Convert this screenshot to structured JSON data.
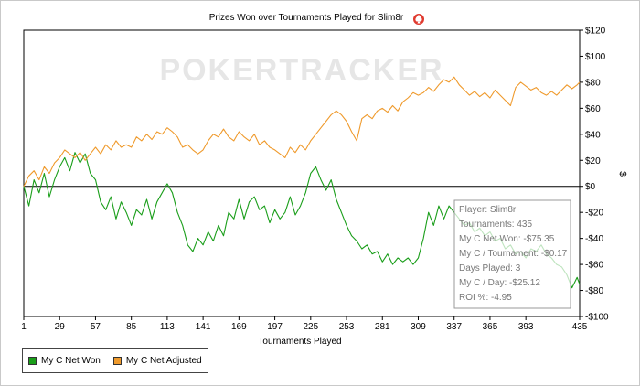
{
  "chart_data": {
    "type": "line",
    "title": "Prizes Won over Tournaments Played for Slim8r",
    "watermark": "POKERTRACKER",
    "xlabel": "Tournaments Played",
    "ylabel": "$",
    "xlim": [
      1,
      435
    ],
    "ylim": [
      -100,
      120
    ],
    "x_ticks": [
      1,
      29,
      57,
      85,
      113,
      141,
      169,
      197,
      225,
      253,
      281,
      309,
      337,
      365,
      393,
      435
    ],
    "y_ticks": [
      120,
      100,
      80,
      60,
      40,
      20,
      0,
      -20,
      -40,
      -60,
      -80,
      -100
    ],
    "y_tick_labels": [
      "$120",
      "$100",
      "$80",
      "$60",
      "$40",
      "$20",
      "$0",
      "-$20",
      "-$40",
      "-$60",
      "-$80",
      "-$100"
    ],
    "grid": false,
    "legend_position": "bottom-left",
    "series": [
      {
        "name": "My C Net Won",
        "color": "#1a9e1a",
        "points": [
          [
            1,
            0
          ],
          [
            5,
            -15
          ],
          [
            9,
            5
          ],
          [
            13,
            -5
          ],
          [
            17,
            10
          ],
          [
            21,
            -8
          ],
          [
            25,
            5
          ],
          [
            29,
            15
          ],
          [
            33,
            22
          ],
          [
            37,
            12
          ],
          [
            41,
            26
          ],
          [
            45,
            18
          ],
          [
            49,
            25
          ],
          [
            53,
            10
          ],
          [
            57,
            5
          ],
          [
            61,
            -12
          ],
          [
            65,
            -18
          ],
          [
            69,
            -8
          ],
          [
            73,
            -25
          ],
          [
            77,
            -12
          ],
          [
            81,
            -20
          ],
          [
            85,
            -30
          ],
          [
            89,
            -18
          ],
          [
            93,
            -22
          ],
          [
            97,
            -10
          ],
          [
            101,
            -25
          ],
          [
            105,
            -12
          ],
          [
            109,
            -5
          ],
          [
            113,
            2
          ],
          [
            117,
            -5
          ],
          [
            121,
            -20
          ],
          [
            125,
            -30
          ],
          [
            129,
            -45
          ],
          [
            133,
            -50
          ],
          [
            137,
            -40
          ],
          [
            141,
            -45
          ],
          [
            145,
            -35
          ],
          [
            149,
            -42
          ],
          [
            153,
            -30
          ],
          [
            157,
            -38
          ],
          [
            161,
            -20
          ],
          [
            165,
            -25
          ],
          [
            169,
            -10
          ],
          [
            173,
            -25
          ],
          [
            177,
            -12
          ],
          [
            181,
            -8
          ],
          [
            185,
            -18
          ],
          [
            189,
            -15
          ],
          [
            193,
            -28
          ],
          [
            197,
            -18
          ],
          [
            201,
            -25
          ],
          [
            205,
            -20
          ],
          [
            209,
            -8
          ],
          [
            213,
            -22
          ],
          [
            217,
            -15
          ],
          [
            221,
            -5
          ],
          [
            225,
            10
          ],
          [
            229,
            15
          ],
          [
            233,
            5
          ],
          [
            237,
            -3
          ],
          [
            241,
            5
          ],
          [
            245,
            -10
          ],
          [
            249,
            -20
          ],
          [
            253,
            -30
          ],
          [
            257,
            -38
          ],
          [
            261,
            -42
          ],
          [
            265,
            -48
          ],
          [
            269,
            -45
          ],
          [
            273,
            -52
          ],
          [
            277,
            -50
          ],
          [
            281,
            -58
          ],
          [
            285,
            -52
          ],
          [
            289,
            -60
          ],
          [
            293,
            -55
          ],
          [
            297,
            -58
          ],
          [
            301,
            -55
          ],
          [
            305,
            -60
          ],
          [
            309,
            -55
          ],
          [
            313,
            -40
          ],
          [
            317,
            -20
          ],
          [
            321,
            -30
          ],
          [
            325,
            -15
          ],
          [
            329,
            -25
          ],
          [
            333,
            -15
          ],
          [
            337,
            -20
          ],
          [
            341,
            -25
          ],
          [
            345,
            -30
          ],
          [
            349,
            -28
          ],
          [
            353,
            -35
          ],
          [
            357,
            -32
          ],
          [
            361,
            -38
          ],
          [
            365,
            -35
          ],
          [
            369,
            -42
          ],
          [
            373,
            -40
          ],
          [
            377,
            -48
          ],
          [
            381,
            -45
          ],
          [
            385,
            -52
          ],
          [
            389,
            -50
          ],
          [
            393,
            -55
          ],
          [
            397,
            -48
          ],
          [
            401,
            -50
          ],
          [
            405,
            -45
          ],
          [
            409,
            -52
          ],
          [
            413,
            -55
          ],
          [
            417,
            -60
          ],
          [
            421,
            -62
          ],
          [
            425,
            -68
          ],
          [
            429,
            -78
          ],
          [
            433,
            -70
          ],
          [
            435,
            -75.35
          ]
        ]
      },
      {
        "name": "My C Net Adjusted",
        "color": "#ef9a2c",
        "points": [
          [
            1,
            0
          ],
          [
            5,
            8
          ],
          [
            9,
            12
          ],
          [
            13,
            5
          ],
          [
            17,
            15
          ],
          [
            21,
            10
          ],
          [
            25,
            18
          ],
          [
            29,
            22
          ],
          [
            33,
            28
          ],
          [
            37,
            25
          ],
          [
            41,
            22
          ],
          [
            45,
            26
          ],
          [
            49,
            20
          ],
          [
            53,
            25
          ],
          [
            57,
            30
          ],
          [
            61,
            25
          ],
          [
            65,
            32
          ],
          [
            69,
            28
          ],
          [
            73,
            35
          ],
          [
            77,
            30
          ],
          [
            81,
            32
          ],
          [
            85,
            30
          ],
          [
            89,
            38
          ],
          [
            93,
            35
          ],
          [
            97,
            40
          ],
          [
            101,
            36
          ],
          [
            105,
            42
          ],
          [
            109,
            40
          ],
          [
            113,
            45
          ],
          [
            117,
            42
          ],
          [
            121,
            38
          ],
          [
            125,
            30
          ],
          [
            129,
            32
          ],
          [
            133,
            28
          ],
          [
            137,
            25
          ],
          [
            141,
            28
          ],
          [
            145,
            35
          ],
          [
            149,
            40
          ],
          [
            153,
            38
          ],
          [
            157,
            44
          ],
          [
            161,
            38
          ],
          [
            165,
            35
          ],
          [
            169,
            42
          ],
          [
            173,
            38
          ],
          [
            177,
            35
          ],
          [
            181,
            40
          ],
          [
            185,
            32
          ],
          [
            189,
            35
          ],
          [
            193,
            30
          ],
          [
            197,
            28
          ],
          [
            201,
            25
          ],
          [
            205,
            22
          ],
          [
            209,
            30
          ],
          [
            213,
            26
          ],
          [
            217,
            32
          ],
          [
            221,
            28
          ],
          [
            225,
            35
          ],
          [
            229,
            40
          ],
          [
            233,
            45
          ],
          [
            237,
            50
          ],
          [
            241,
            55
          ],
          [
            245,
            58
          ],
          [
            249,
            55
          ],
          [
            253,
            50
          ],
          [
            257,
            42
          ],
          [
            261,
            35
          ],
          [
            265,
            52
          ],
          [
            269,
            55
          ],
          [
            273,
            52
          ],
          [
            277,
            58
          ],
          [
            281,
            60
          ],
          [
            285,
            57
          ],
          [
            289,
            62
          ],
          [
            293,
            58
          ],
          [
            297,
            65
          ],
          [
            301,
            68
          ],
          [
            305,
            72
          ],
          [
            309,
            70
          ],
          [
            313,
            72
          ],
          [
            317,
            76
          ],
          [
            321,
            73
          ],
          [
            325,
            78
          ],
          [
            329,
            82
          ],
          [
            333,
            80
          ],
          [
            337,
            84
          ],
          [
            341,
            78
          ],
          [
            345,
            74
          ],
          [
            349,
            70
          ],
          [
            353,
            73
          ],
          [
            357,
            69
          ],
          [
            361,
            72
          ],
          [
            365,
            68
          ],
          [
            369,
            74
          ],
          [
            373,
            70
          ],
          [
            377,
            66
          ],
          [
            381,
            62
          ],
          [
            385,
            76
          ],
          [
            389,
            80
          ],
          [
            393,
            77
          ],
          [
            397,
            74
          ],
          [
            401,
            76
          ],
          [
            405,
            72
          ],
          [
            409,
            70
          ],
          [
            413,
            73
          ],
          [
            417,
            70
          ],
          [
            421,
            74
          ],
          [
            425,
            78
          ],
          [
            429,
            75
          ],
          [
            433,
            78
          ],
          [
            435,
            80
          ]
        ]
      }
    ],
    "tooltip": {
      "lines": [
        "Player: Slim8r",
        "Tournaments: 435",
        "My C Net Won: -$75.35",
        "My C / Tournament: -$0.17",
        "Days Played: 3",
        "My C / Day: -$25.12",
        "ROI %: -4.95"
      ]
    }
  }
}
